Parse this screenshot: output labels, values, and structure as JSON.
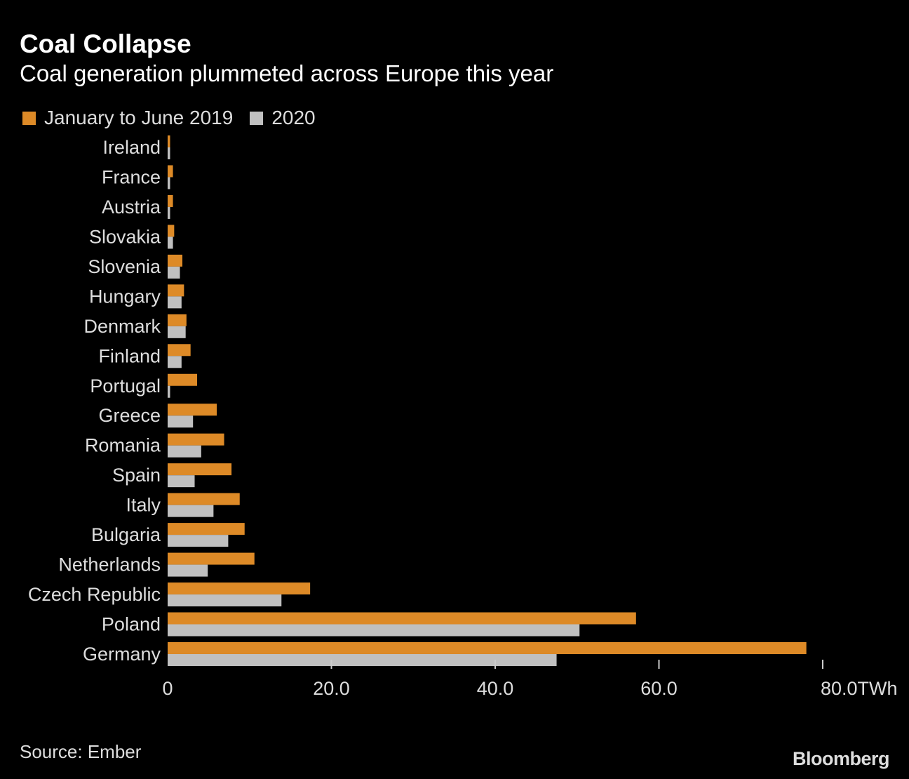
{
  "chart_data": {
    "type": "bar",
    "orientation": "horizontal",
    "title": "Coal Collapse",
    "subtitle": "Coal generation plummeted across Europe this year",
    "categories": [
      "Ireland",
      "France",
      "Austria",
      "Slovakia",
      "Slovenia",
      "Hungary",
      "Denmark",
      "Finland",
      "Portugal",
      "Greece",
      "Romania",
      "Spain",
      "Italy",
      "Bulgaria",
      "Netherlands",
      "Czech Republic",
      "Poland",
      "Germany"
    ],
    "series": [
      {
        "name": "January to June 2019",
        "color": "#dd8a27",
        "values": [
          0.3,
          0.65,
          0.65,
          0.8,
          1.8,
          2.0,
          2.3,
          2.8,
          3.6,
          6.0,
          6.9,
          7.8,
          8.8,
          9.4,
          10.6,
          17.4,
          57.2,
          78.0
        ]
      },
      {
        "name": "2020",
        "color": "#c0c0c0",
        "values": [
          0.3,
          0.3,
          0.3,
          0.65,
          1.5,
          1.7,
          2.2,
          1.7,
          0.3,
          3.1,
          4.1,
          3.3,
          5.6,
          7.4,
          4.9,
          13.9,
          50.3,
          47.5
        ]
      }
    ],
    "xlim": [
      0,
      80
    ],
    "ticks": [
      0,
      20,
      40,
      60,
      80
    ],
    "tick_labels": [
      "0",
      "20.0",
      "40.0",
      "60.0",
      "80.0TWh"
    ],
    "grid": false,
    "legend_position": "top-left"
  },
  "footer": {
    "source": "Source: Ember",
    "logo": "Bloomberg"
  }
}
